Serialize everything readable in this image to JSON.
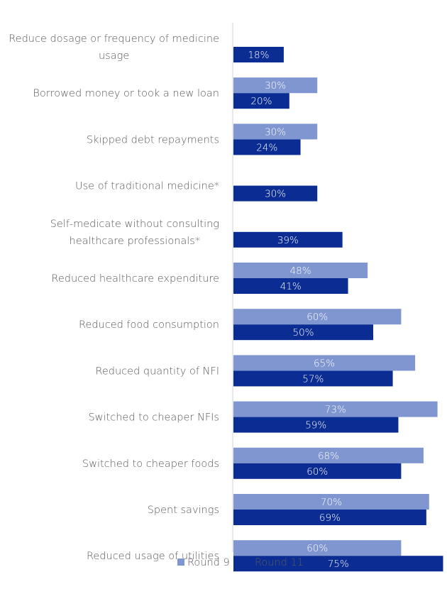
{
  "chart_data": {
    "type": "bar",
    "orientation": "horizontal",
    "title": "",
    "xlabel": "",
    "ylabel": "",
    "xlim": [
      0,
      100
    ],
    "grid": false,
    "legend_position": "bottom",
    "categories": [
      [
        "Reduce dosage or frequency of medicine",
        "usage"
      ],
      [
        "Borrowed money or took a new loan"
      ],
      [
        "Skipped debt repayments"
      ],
      [
        "Use of traditional medicine*"
      ],
      [
        "Self-medicate without consulting",
        "healthcare professionals*"
      ],
      [
        "Reduced healthcare expenditure"
      ],
      [
        "Reduced food consumption"
      ],
      [
        "Reduced quantity of NFI"
      ],
      [
        "Switched to cheaper NFIs"
      ],
      [
        "Switched to cheaper foods"
      ],
      [
        "Spent savings"
      ],
      [
        "Reduced usage of utilities"
      ]
    ],
    "series": [
      {
        "name": "Round 9",
        "color": "#7f96d1",
        "values": [
          null,
          30,
          30,
          null,
          null,
          48,
          60,
          65,
          73,
          68,
          70,
          60
        ]
      },
      {
        "name": "Round 11",
        "color": "#0b2d93",
        "values": [
          18,
          20,
          24,
          30,
          39,
          41,
          50,
          57,
          59,
          60,
          69,
          75
        ]
      }
    ],
    "value_suffix": "%"
  }
}
